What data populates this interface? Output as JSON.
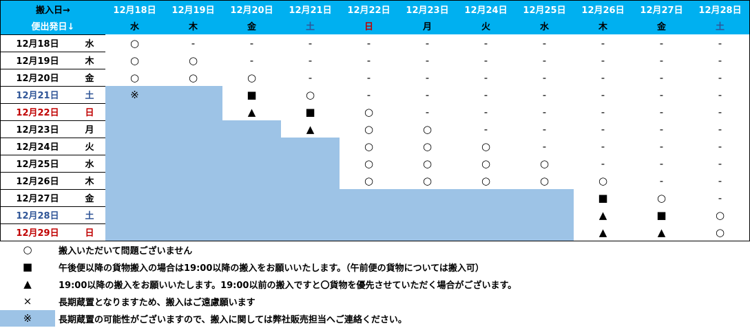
{
  "table": {
    "header": {
      "corner_top": "搬入日→",
      "corner_bottom": "便出発日↓",
      "dates": [
        "12月18日",
        "12月19日",
        "12月20日",
        "12月21日",
        "12月22日",
        "12月23日",
        "12月24日",
        "12月25日",
        "12月26日",
        "12月27日",
        "12月28日"
      ],
      "weekdays": [
        "水",
        "木",
        "金",
        "土",
        "日",
        "月",
        "火",
        "水",
        "木",
        "金",
        "土"
      ],
      "weekday_colors": [
        "#000000",
        "#000000",
        "#000000",
        "#2f5597",
        "#c00000",
        "#000000",
        "#000000",
        "#000000",
        "#000000",
        "#000000",
        "#2f5597"
      ]
    },
    "rows": [
      {
        "date": "12月18日",
        "weekday": "水",
        "color": "#000000",
        "cells": [
          "○",
          "-",
          "-",
          "-",
          "-",
          "-",
          "-",
          "-",
          "-",
          "-",
          "-"
        ],
        "shade": [
          false,
          false,
          false,
          false,
          false,
          false,
          false,
          false,
          false,
          false,
          false
        ]
      },
      {
        "date": "12月19日",
        "weekday": "木",
        "color": "#000000",
        "cells": [
          "○",
          "○",
          "-",
          "-",
          "-",
          "-",
          "-",
          "-",
          "-",
          "-",
          "-"
        ],
        "shade": [
          false,
          false,
          false,
          false,
          false,
          false,
          false,
          false,
          false,
          false,
          false
        ]
      },
      {
        "date": "12月20日",
        "weekday": "金",
        "color": "#000000",
        "cells": [
          "○",
          "○",
          "○",
          "-",
          "-",
          "-",
          "-",
          "-",
          "-",
          "-",
          "-"
        ],
        "shade": [
          false,
          false,
          false,
          false,
          false,
          false,
          false,
          false,
          false,
          false,
          false
        ]
      },
      {
        "date": "12月21日",
        "weekday": "土",
        "color": "#2f5597",
        "cells": [
          "※",
          null,
          "■",
          "○",
          "-",
          "-",
          "-",
          "-",
          "-",
          "-",
          "-"
        ],
        "shade": [
          true,
          true,
          false,
          false,
          false,
          false,
          false,
          false,
          false,
          false,
          false
        ]
      },
      {
        "date": "12月22日",
        "weekday": "日",
        "color": "#c00000",
        "cells": [
          null,
          null,
          "▲",
          "■",
          "○",
          "-",
          "-",
          "-",
          "-",
          "-",
          "-"
        ],
        "shade": [
          true,
          true,
          false,
          false,
          false,
          false,
          false,
          false,
          false,
          false,
          false
        ]
      },
      {
        "date": "12月23日",
        "weekday": "月",
        "color": "#000000",
        "cells": [
          null,
          null,
          null,
          "▲",
          "○",
          "○",
          "-",
          "-",
          "-",
          "-",
          "-"
        ],
        "shade": [
          true,
          true,
          true,
          false,
          false,
          false,
          false,
          false,
          false,
          false,
          false
        ]
      },
      {
        "date": "12月24日",
        "weekday": "火",
        "color": "#000000",
        "cells": [
          null,
          null,
          null,
          null,
          "○",
          "○",
          "○",
          "-",
          "-",
          "-",
          "-"
        ],
        "shade": [
          true,
          true,
          true,
          true,
          false,
          false,
          false,
          false,
          false,
          false,
          false
        ]
      },
      {
        "date": "12月25日",
        "weekday": "水",
        "color": "#000000",
        "cells": [
          null,
          null,
          null,
          null,
          "○",
          "○",
          "○",
          "○",
          "-",
          "-",
          "-"
        ],
        "shade": [
          true,
          true,
          true,
          true,
          false,
          false,
          false,
          false,
          false,
          false,
          false
        ]
      },
      {
        "date": "12月26日",
        "weekday": "木",
        "color": "#000000",
        "cells": [
          null,
          null,
          null,
          null,
          "○",
          "○",
          "○",
          "○",
          "○",
          "-",
          "-"
        ],
        "shade": [
          true,
          true,
          true,
          true,
          false,
          false,
          false,
          false,
          false,
          false,
          false
        ]
      },
      {
        "date": "12月27日",
        "weekday": "金",
        "color": "#000000",
        "cells": [
          null,
          null,
          null,
          null,
          null,
          null,
          null,
          null,
          "■",
          "○",
          "-"
        ],
        "shade": [
          true,
          true,
          true,
          true,
          true,
          true,
          true,
          true,
          false,
          false,
          false
        ]
      },
      {
        "date": "12月28日",
        "weekday": "土",
        "color": "#2f5597",
        "cells": [
          null,
          null,
          null,
          null,
          null,
          null,
          null,
          null,
          "▲",
          "■",
          "○"
        ],
        "shade": [
          true,
          true,
          true,
          true,
          true,
          true,
          true,
          true,
          false,
          false,
          false
        ]
      },
      {
        "date": "12月29日",
        "weekday": "日",
        "color": "#c00000",
        "cells": [
          null,
          null,
          null,
          null,
          null,
          null,
          null,
          null,
          "▲",
          "▲",
          "○"
        ],
        "shade": [
          true,
          true,
          true,
          true,
          true,
          true,
          true,
          true,
          false,
          false,
          false
        ]
      }
    ]
  },
  "legend": [
    {
      "symbol": "○",
      "text": "搬入いただいて問題ございません",
      "shaded": false
    },
    {
      "symbol": "■",
      "text": "午後便以降の貨物搬入の場合は19:00以降の搬入をお願いいたします。（午前便の貨物については搬入可）",
      "shaded": false
    },
    {
      "symbol": "▲",
      "text": "19:00以降の搬入をお願いいたします。19:00以前の搬入ですと〇貨物を優先させていただく場合がございます。",
      "shaded": false
    },
    {
      "symbol": "×",
      "text": "長期蔵置となりますため、搬入はご遠慮願います",
      "shaded": false
    },
    {
      "symbol": "※",
      "text": "長期蔵置の可能性がございますので、搬入に関しては弊社販売担当へご連絡ください。",
      "shaded": true
    }
  ]
}
